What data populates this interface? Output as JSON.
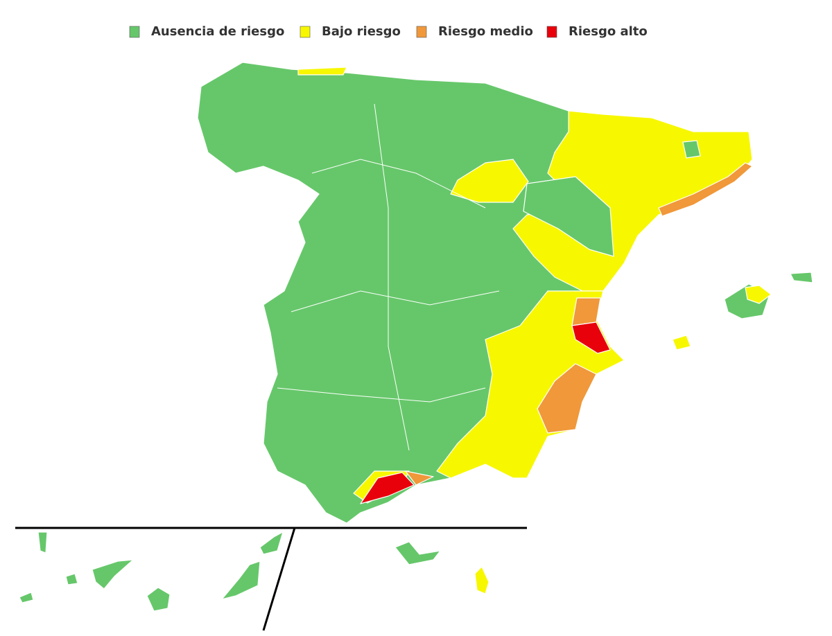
{
  "legend": {
    "items": [
      {
        "label": "Ausencia de riesgo",
        "color": "#66c76a"
      },
      {
        "label": "Bajo riesgo",
        "color": "#f7f700"
      },
      {
        "label": "Riesgo medio",
        "color": "#f0983a"
      },
      {
        "label": "Riesgo alto",
        "color": "#e8000b"
      }
    ]
  }
}
